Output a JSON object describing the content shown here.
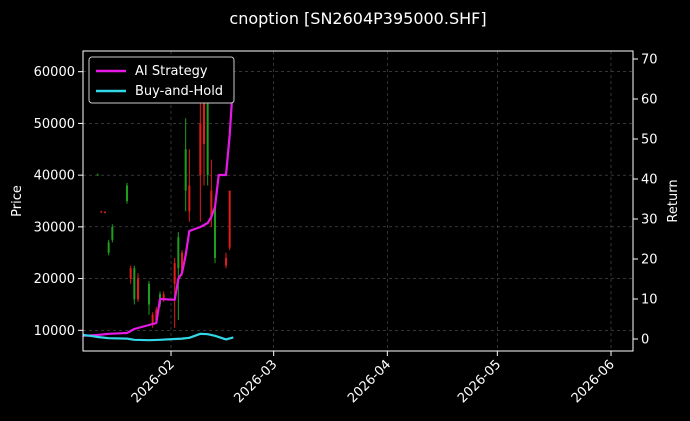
{
  "chart_data": {
    "type": "candlestick",
    "title": "cnoption [SN2604P395000.SHF]",
    "ylabel_left": "Price",
    "ylabel_right": "Return",
    "xlim": [
      "2026-01-08",
      "2026-06-07"
    ],
    "ylim_left": [
      6000,
      64000
    ],
    "ylim_right": [
      -3,
      72
    ],
    "x_ticks": [
      "2026-02-01",
      "2026-03-01",
      "2026-04-01",
      "2026-05-01",
      "2026-06-01"
    ],
    "x_tick_labels": [
      "2026-02",
      "2026-03",
      "2026-04",
      "2026-05",
      "2026-06"
    ],
    "y_ticks_left": [
      10000,
      20000,
      30000,
      40000,
      50000,
      60000
    ],
    "y_ticks_right": [
      0,
      10,
      20,
      30,
      40,
      50,
      60,
      70
    ],
    "grid": true,
    "legend_position": "top-left",
    "colors": {
      "up": "#1f9d1f",
      "down": "#e21b1b",
      "ai_strategy": "#e619e6",
      "buy_and_hold": "#33d6e6",
      "grid": "#555555",
      "background": "#000000",
      "axis": "#ffffff"
    },
    "candles": [
      {
        "date": "2026-01-12",
        "open": 40000,
        "close": 40100,
        "high": 40300,
        "low": 39900
      },
      {
        "date": "2026-01-13",
        "open": 33000,
        "close": 32800,
        "high": 33100,
        "low": 32700
      },
      {
        "date": "2026-01-14",
        "open": 32900,
        "close": 32700,
        "high": 33000,
        "low": 32600
      },
      {
        "date": "2026-01-15",
        "open": 25000,
        "close": 27000,
        "high": 27500,
        "low": 24500
      },
      {
        "date": "2026-01-16",
        "open": 27500,
        "close": 30000,
        "high": 30500,
        "low": 27000
      },
      {
        "date": "2026-01-20",
        "open": 35000,
        "close": 38000,
        "high": 38500,
        "low": 34500
      },
      {
        "date": "2026-01-21",
        "open": 22000,
        "close": 20000,
        "high": 22500,
        "low": 19000
      },
      {
        "date": "2026-01-22",
        "open": 16000,
        "close": 22000,
        "high": 22500,
        "low": 15000
      },
      {
        "date": "2026-01-23",
        "open": 20000,
        "close": 16000,
        "high": 21000,
        "low": 15500
      },
      {
        "date": "2026-01-26",
        "open": 15000,
        "close": 19000,
        "high": 19500,
        "low": 13000
      },
      {
        "date": "2026-01-27",
        "open": 13000,
        "close": 11000,
        "high": 13500,
        "low": 10500
      },
      {
        "date": "2026-01-28",
        "open": 14000,
        "close": 12000,
        "high": 14500,
        "low": 11500
      },
      {
        "date": "2026-01-29",
        "open": 15000,
        "close": 17000,
        "high": 17500,
        "low": 14500
      },
      {
        "date": "2026-01-30",
        "open": 17000,
        "close": 16000,
        "high": 17500,
        "low": 15500
      },
      {
        "date": "2026-02-02",
        "open": 23000,
        "close": 19000,
        "high": 24000,
        "low": 10500
      },
      {
        "date": "2026-02-03",
        "open": 22000,
        "close": 28000,
        "high": 29000,
        "low": 12000
      },
      {
        "date": "2026-02-04",
        "open": 25000,
        "close": 21000,
        "high": 25500,
        "low": 20500
      },
      {
        "date": "2026-02-05",
        "open": 37000,
        "close": 45000,
        "high": 51000,
        "low": 33000
      },
      {
        "date": "2026-02-06",
        "open": 38000,
        "close": 33000,
        "high": 45000,
        "low": 31000
      },
      {
        "date": "2026-02-09",
        "open": 50000,
        "close": 40000,
        "high": 56000,
        "low": 31000
      },
      {
        "date": "2026-02-10",
        "open": 56000,
        "close": 46000,
        "high": 57000,
        "low": 38000
      },
      {
        "date": "2026-02-11",
        "open": 40000,
        "close": 55000,
        "high": 56000,
        "low": 38000
      },
      {
        "date": "2026-02-12",
        "open": 37000,
        "close": 32000,
        "high": 43000,
        "low": 30000
      },
      {
        "date": "2026-02-13",
        "open": 24000,
        "close": 34000,
        "high": 34500,
        "low": 23000
      },
      {
        "date": "2026-02-16",
        "open": 24000,
        "close": 22500,
        "high": 25000,
        "low": 22000
      },
      {
        "date": "2026-02-17",
        "open": 37000,
        "close": 26000,
        "high": 37000,
        "low": 25500
      }
    ],
    "series": [
      {
        "name": "AI Strategy",
        "axis": "right",
        "x": [
          "2026-01-08",
          "2026-01-12",
          "2026-01-15",
          "2026-01-20",
          "2026-01-22",
          "2026-01-26",
          "2026-01-28",
          "2026-01-29",
          "2026-02-02",
          "2026-02-03",
          "2026-02-04",
          "2026-02-05",
          "2026-02-06",
          "2026-02-09",
          "2026-02-10",
          "2026-02-11",
          "2026-02-12",
          "2026-02-13",
          "2026-02-14",
          "2026-02-16",
          "2026-02-17",
          "2026-02-18"
        ],
        "values": [
          0.8,
          1.0,
          1.3,
          1.5,
          2.5,
          3.5,
          4.0,
          10.0,
          9.8,
          15.0,
          16.5,
          21.0,
          27.0,
          28.0,
          28.5,
          29.0,
          30.5,
          33.0,
          41.0,
          41.0,
          51.0,
          65.0
        ]
      },
      {
        "name": "Buy-and-Hold",
        "axis": "right",
        "x": [
          "2026-01-08",
          "2026-01-10",
          "2026-01-12",
          "2026-01-15",
          "2026-01-20",
          "2026-01-22",
          "2026-01-26",
          "2026-01-29",
          "2026-02-02",
          "2026-02-04",
          "2026-02-06",
          "2026-02-09",
          "2026-02-11",
          "2026-02-13",
          "2026-02-16",
          "2026-02-18"
        ],
        "values": [
          1.0,
          0.8,
          0.5,
          0.2,
          0.1,
          -0.2,
          -0.3,
          -0.2,
          0.0,
          0.1,
          0.3,
          1.3,
          1.2,
          0.8,
          -0.1,
          0.4
        ]
      }
    ]
  }
}
